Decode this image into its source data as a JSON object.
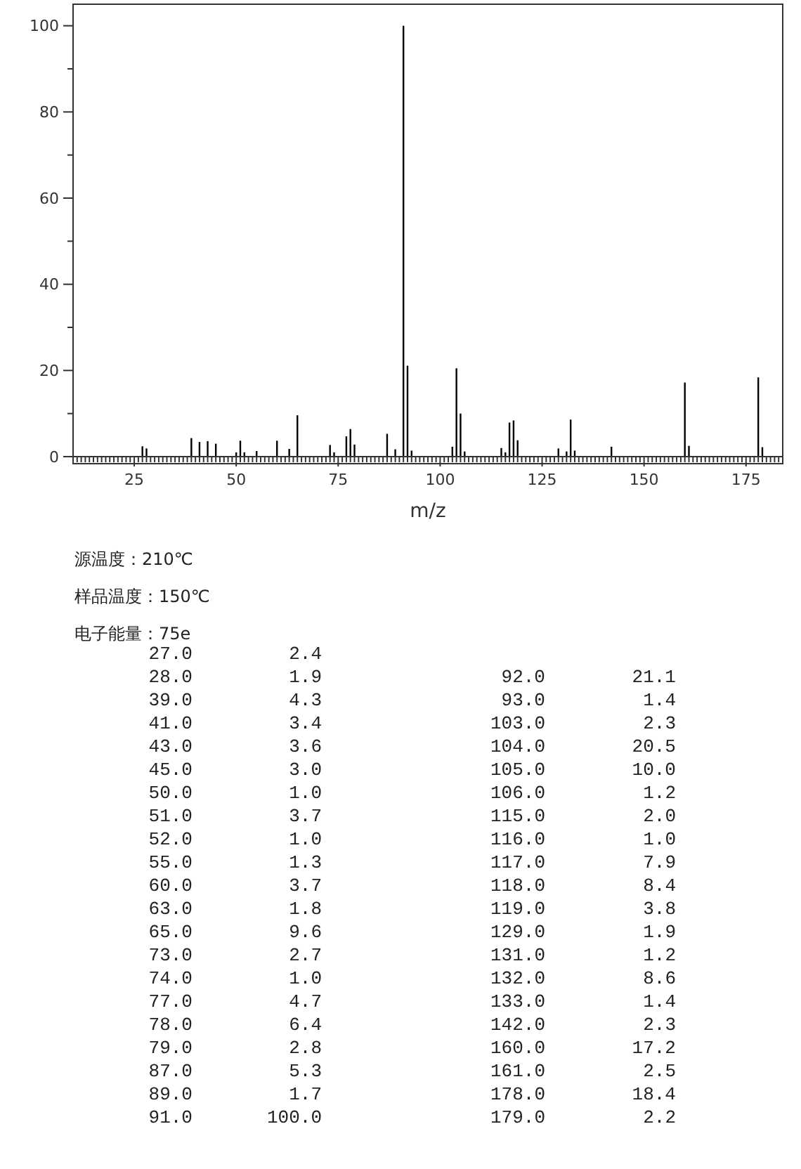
{
  "chart_data": [
    {
      "type": "bar",
      "xlabel": "m/z",
      "x": [
        27,
        28,
        39,
        41,
        43,
        45,
        50,
        51,
        52,
        55,
        60,
        63,
        65,
        73,
        74,
        77,
        78,
        79,
        87,
        89,
        91,
        92,
        93,
        103,
        104,
        105,
        106,
        115,
        116,
        117,
        118,
        119,
        129,
        131,
        132,
        133,
        142,
        160,
        161,
        178,
        179
      ],
      "values": [
        2.4,
        1.9,
        4.3,
        3.4,
        3.6,
        3.0,
        1.0,
        3.7,
        1.0,
        1.3,
        3.7,
        1.8,
        9.6,
        2.7,
        1.0,
        4.7,
        6.4,
        2.8,
        5.3,
        1.7,
        100.0,
        21.1,
        1.4,
        2.3,
        20.5,
        10.0,
        1.2,
        2.0,
        1.0,
        7.9,
        8.4,
        3.8,
        1.9,
        1.2,
        8.6,
        1.4,
        2.3,
        17.2,
        2.5,
        18.4,
        2.2
      ],
      "color": "#000000",
      "xlim": [
        10,
        184
      ],
      "xticks": [
        {
          "value": 11,
          "label": null
        },
        {
          "value": 12,
          "label": null
        },
        {
          "value": 13,
          "label": null
        },
        {
          "value": 14,
          "label": null
        },
        {
          "value": 15,
          "label": null
        },
        {
          "value": 16,
          "label": null
        },
        {
          "value": 17,
          "label": null
        },
        {
          "value": 18,
          "label": null
        },
        {
          "value": 19,
          "label": null
        },
        {
          "value": 20,
          "label": null
        },
        {
          "value": 21,
          "label": null
        },
        {
          "value": 22,
          "label": null
        },
        {
          "value": 23,
          "label": null
        },
        {
          "value": 24,
          "label": null
        },
        25,
        {
          "value": 26,
          "label": null
        },
        {
          "value": 27,
          "label": null
        },
        {
          "value": 28,
          "label": null
        },
        {
          "value": 29,
          "label": null
        },
        {
          "value": 30,
          "label": null
        },
        {
          "value": 31,
          "label": null
        },
        {
          "value": 32,
          "label": null
        },
        {
          "value": 33,
          "label": null
        },
        {
          "value": 34,
          "label": null
        },
        {
          "value": 35,
          "label": null
        },
        {
          "value": 36,
          "label": null
        },
        {
          "value": 37,
          "label": null
        },
        {
          "value": 38,
          "label": null
        },
        {
          "value": 39,
          "label": null
        },
        {
          "value": 40,
          "label": null
        },
        {
          "value": 41,
          "label": null
        },
        {
          "value": 42,
          "label": null
        },
        {
          "value": 43,
          "label": null
        },
        {
          "value": 44,
          "label": null
        },
        {
          "value": 45,
          "label": null
        },
        {
          "value": 46,
          "label": null
        },
        {
          "value": 47,
          "label": null
        },
        {
          "value": 48,
          "label": null
        },
        {
          "value": 49,
          "label": null
        },
        50,
        {
          "value": 51,
          "label": null
        },
        {
          "value": 52,
          "label": null
        },
        {
          "value": 53,
          "label": null
        },
        {
          "value": 54,
          "label": null
        },
        {
          "value": 55,
          "label": null
        },
        {
          "value": 56,
          "label": null
        },
        {
          "value": 57,
          "label": null
        },
        {
          "value": 58,
          "label": null
        },
        {
          "value": 59,
          "label": null
        },
        {
          "value": 60,
          "label": null
        },
        {
          "value": 61,
          "label": null
        },
        {
          "value": 62,
          "label": null
        },
        {
          "value": 63,
          "label": null
        },
        {
          "value": 64,
          "label": null
        },
        {
          "value": 65,
          "label": null
        },
        {
          "value": 66,
          "label": null
        },
        {
          "value": 67,
          "label": null
        },
        {
          "value": 68,
          "label": null
        },
        {
          "value": 69,
          "label": null
        },
        {
          "value": 70,
          "label": null
        },
        {
          "value": 71,
          "label": null
        },
        {
          "value": 72,
          "label": null
        },
        {
          "value": 73,
          "label": null
        },
        {
          "value": 74,
          "label": null
        },
        75,
        {
          "value": 76,
          "label": null
        },
        {
          "value": 77,
          "label": null
        },
        {
          "value": 78,
          "label": null
        },
        {
          "value": 79,
          "label": null
        },
        {
          "value": 80,
          "label": null
        },
        {
          "value": 81,
          "label": null
        },
        {
          "value": 82,
          "label": null
        },
        {
          "value": 83,
          "label": null
        },
        {
          "value": 84,
          "label": null
        },
        {
          "value": 85,
          "label": null
        },
        {
          "value": 86,
          "label": null
        },
        {
          "value": 87,
          "label": null
        },
        {
          "value": 88,
          "label": null
        },
        {
          "value": 89,
          "label": null
        },
        {
          "value": 90,
          "label": null
        },
        {
          "value": 91,
          "label": null
        },
        {
          "value": 92,
          "label": null
        },
        {
          "value": 93,
          "label": null
        },
        {
          "value": 94,
          "label": null
        },
        {
          "value": 95,
          "label": null
        },
        {
          "value": 96,
          "label": null
        },
        {
          "value": 97,
          "label": null
        },
        {
          "value": 98,
          "label": null
        },
        {
          "value": 99,
          "label": null
        },
        100,
        {
          "value": 101,
          "label": null
        },
        {
          "value": 102,
          "label": null
        },
        {
          "value": 103,
          "label": null
        },
        {
          "value": 104,
          "label": null
        },
        {
          "value": 105,
          "label": null
        },
        {
          "value": 106,
          "label": null
        },
        {
          "value": 107,
          "label": null
        },
        {
          "value": 108,
          "label": null
        },
        {
          "value": 109,
          "label": null
        },
        {
          "value": 110,
          "label": null
        },
        {
          "value": 111,
          "label": null
        },
        {
          "value": 112,
          "label": null
        },
        {
          "value": 113,
          "label": null
        },
        {
          "value": 114,
          "label": null
        },
        {
          "value": 115,
          "label": null
        },
        {
          "value": 116,
          "label": null
        },
        {
          "value": 117,
          "label": null
        },
        {
          "value": 118,
          "label": null
        },
        {
          "value": 119,
          "label": null
        },
        {
          "value": 120,
          "label": null
        },
        {
          "value": 121,
          "label": null
        },
        {
          "value": 122,
          "label": null
        },
        {
          "value": 123,
          "label": null
        },
        {
          "value": 124,
          "label": null
        },
        125,
        {
          "value": 126,
          "label": null
        },
        {
          "value": 127,
          "label": null
        },
        {
          "value": 128,
          "label": null
        },
        {
          "value": 129,
          "label": null
        },
        {
          "value": 130,
          "label": null
        },
        {
          "value": 131,
          "label": null
        },
        {
          "value": 132,
          "label": null
        },
        {
          "value": 133,
          "label": null
        },
        {
          "value": 134,
          "label": null
        },
        {
          "value": 135,
          "label": null
        },
        {
          "value": 136,
          "label": null
        },
        {
          "value": 137,
          "label": null
        },
        {
          "value": 138,
          "label": null
        },
        {
          "value": 139,
          "label": null
        },
        {
          "value": 140,
          "label": null
        },
        {
          "value": 141,
          "label": null
        },
        {
          "value": 142,
          "label": null
        },
        {
          "value": 143,
          "label": null
        },
        {
          "value": 144,
          "label": null
        },
        {
          "value": 145,
          "label": null
        },
        {
          "value": 146,
          "label": null
        },
        {
          "value": 147,
          "label": null
        },
        {
          "value": 148,
          "label": null
        },
        {
          "value": 149,
          "label": null
        },
        150,
        {
          "value": 151,
          "label": null
        },
        {
          "value": 152,
          "label": null
        },
        {
          "value": 153,
          "label": null
        },
        {
          "value": 154,
          "label": null
        },
        {
          "value": 155,
          "label": null
        },
        {
          "value": 156,
          "label": null
        },
        {
          "value": 157,
          "label": null
        },
        {
          "value": 158,
          "label": null
        },
        {
          "value": 159,
          "label": null
        },
        {
          "value": 160,
          "label": null
        },
        {
          "value": 161,
          "label": null
        },
        {
          "value": 162,
          "label": null
        },
        {
          "value": 163,
          "label": null
        },
        {
          "value": 164,
          "label": null
        },
        {
          "value": 165,
          "label": null
        },
        {
          "value": 166,
          "label": null
        },
        {
          "value": 167,
          "label": null
        },
        {
          "value": 168,
          "label": null
        },
        {
          "value": 169,
          "label": null
        },
        {
          "value": 170,
          "label": null
        },
        {
          "value": 171,
          "label": null
        },
        {
          "value": 172,
          "label": null
        },
        {
          "value": 173,
          "label": null
        },
        {
          "value": 174,
          "label": null
        },
        175,
        {
          "value": 176,
          "label": null
        },
        {
          "value": 177,
          "label": null
        },
        {
          "value": 178,
          "label": null
        },
        {
          "value": 179,
          "label": null
        },
        {
          "value": 180,
          "label": null
        },
        {
          "value": 181,
          "label": null
        },
        {
          "value": 182,
          "label": null
        },
        {
          "value": 183,
          "label": null
        }
      ],
      "ylim": [
        0,
        105
      ],
      "yticks": [
        0,
        {
          "value": 10,
          "label": null
        },
        20,
        {
          "value": 30,
          "label": null
        },
        40,
        {
          "value": 50,
          "label": null
        },
        60,
        {
          "value": 70,
          "label": null
        },
        80,
        {
          "value": 90,
          "label": null
        },
        100
      ],
      "grid": false,
      "annotations": [
        "源温度：210℃",
        "样品温度：150℃",
        "电子能量：75e"
      ]
    },
    {
      "type": "other",
      "categories": [
        "27.0",
        "28.0",
        "39.0",
        "41.0",
        "43.0",
        "45.0",
        "50.0",
        "51.0",
        "52.0",
        "55.0",
        "60.0",
        "63.0",
        "65.0",
        "73.0",
        "74.0",
        "77.0",
        "78.0",
        "79.0",
        "87.0",
        "89.0",
        "91.0",
        "92.0",
        "93.0",
        "103.0",
        "104.0",
        "105.0",
        "106.0",
        "115.0",
        "116.0",
        "117.0",
        "118.0",
        "119.0",
        "129.0",
        "131.0",
        "132.0",
        "133.0",
        "142.0",
        "160.0",
        "161.0",
        "178.0",
        "179.0"
      ],
      "value_labels": [
        "2.4",
        "1.9",
        "4.3",
        "3.4",
        "3.6",
        "3.0",
        "1.0",
        "3.7",
        "1.0",
        "1.3",
        "3.7",
        "1.8",
        "9.6",
        "2.7",
        "1.0",
        "4.7",
        "6.4",
        "2.8",
        "5.3",
        "1.7",
        "100.0",
        "21.1",
        "1.4",
        "2.3",
        "20.5",
        "10.0",
        "1.2",
        "2.0",
        "1.0",
        "7.9",
        "8.4",
        "3.8",
        "1.9",
        "1.2",
        "8.6",
        "1.4",
        "2.3",
        "17.2",
        "2.5",
        "18.4",
        "2.2"
      ]
    }
  ]
}
